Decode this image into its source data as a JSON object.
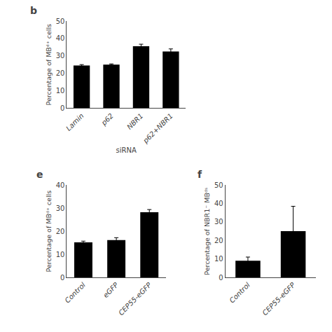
{
  "chart_data": [
    {
      "type": "bar",
      "title": "b",
      "categories": [
        "Lamin",
        "p62",
        "NBR1",
        "p62+NBR1"
      ],
      "values": [
        24.5,
        25.0,
        35.5,
        32.5
      ],
      "errors": [
        0.5,
        0.4,
        1.2,
        1.5
      ],
      "color": "#000000",
      "ylabel": "Percentage of MBᵈ⁺ cells",
      "xlabel": "siRNA",
      "ylim": [
        0,
        50
      ],
      "yticks": [
        0,
        10,
        20,
        30,
        40,
        50
      ],
      "grid": false
    },
    {
      "type": "bar",
      "title": "e",
      "categories": [
        "Control",
        "eGFP",
        "CEP55-eGFP"
      ],
      "values": [
        15.2,
        16.2,
        28.2
      ],
      "errors": [
        0.5,
        1.0,
        1.2
      ],
      "color": "#000000",
      "ylabel": "Percentage of MBᵈ⁺ cells",
      "ylim": [
        0,
        40
      ],
      "yticks": [
        0,
        10,
        20,
        30,
        40
      ],
      "grid": false
    },
    {
      "type": "bar",
      "title": "f",
      "categories": [
        "Control",
        "CEP55-eGFP"
      ],
      "values": [
        9.0,
        25.0
      ],
      "errors": [
        2.0,
        13.5
      ],
      "color": "#000000",
      "ylabel": "Percentage of NBR1⁻ MBᵈˢ",
      "ylim": [
        0,
        50
      ],
      "yticks": [
        0,
        10,
        20,
        30,
        40,
        50
      ],
      "grid": false
    }
  ]
}
